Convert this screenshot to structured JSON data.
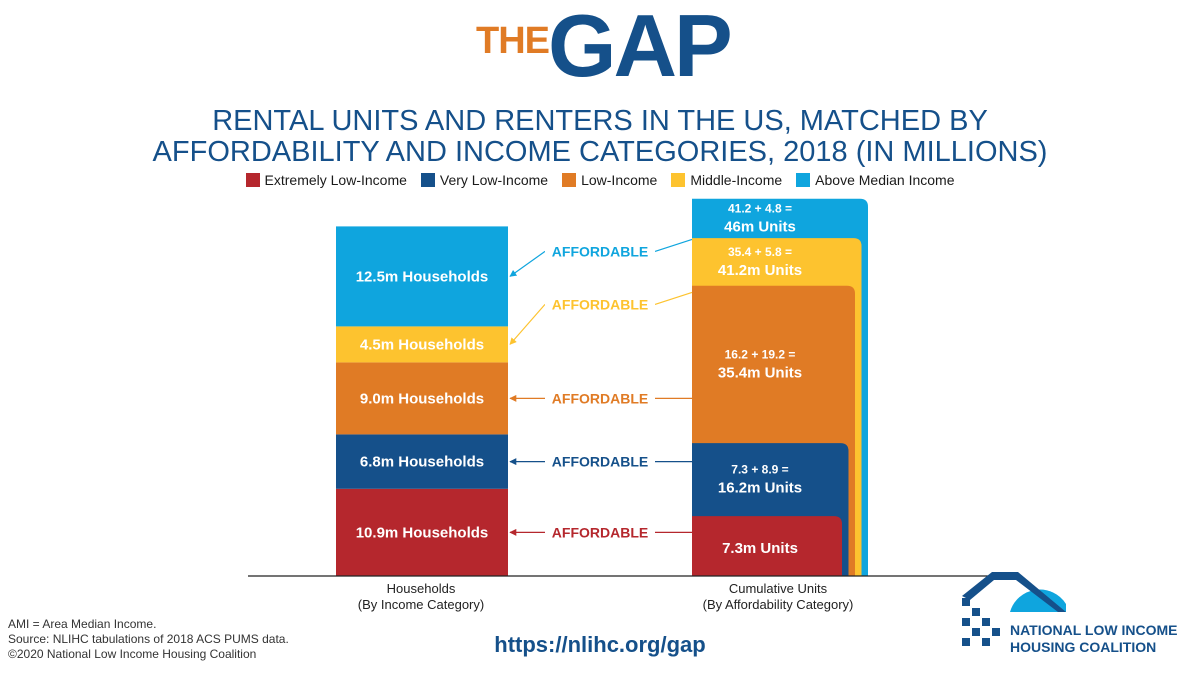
{
  "header": {
    "logo_the": "THE",
    "logo_gap": "GAP",
    "title_line1": "RENTAL UNITS AND RENTERS IN THE US, MATCHED BY",
    "title_line2": "AFFORDABILITY AND INCOME CATEGORIES, 2018 (IN MILLIONS)"
  },
  "legend": [
    {
      "label": "Extremely Low-Income",
      "color": "#B5272D"
    },
    {
      "label": "Very Low-Income",
      "color": "#15508A"
    },
    {
      "label": "Low-Income",
      "color": "#E07B25"
    },
    {
      "label": "Middle-Income",
      "color": "#FDC32F"
    },
    {
      "label": "Above Median Income",
      "color": "#0FA5DE"
    }
  ],
  "chart_data": {
    "type": "bar",
    "title": "RENTAL UNITS AND RENTERS IN THE US, MATCHED BY AFFORDABILITY AND INCOME CATEGORIES, 2018 (IN MILLIONS)",
    "categories": [
      "Households\n(By Income Category)",
      "Cumulative Units\n(By Affordability Category)"
    ],
    "households": {
      "axis_label": [
        "Households",
        "(By Income Category)"
      ],
      "segments": [
        {
          "category": "Extremely Low-Income",
          "value": 10.9,
          "label": "10.9m Households"
        },
        {
          "category": "Very Low-Income",
          "value": 6.8,
          "label": "6.8m Households"
        },
        {
          "category": "Low-Income",
          "value": 9.0,
          "label": "9.0m Households"
        },
        {
          "category": "Middle-Income",
          "value": 4.5,
          "label": "4.5m Households"
        },
        {
          "category": "Above Median Income",
          "value": 12.5,
          "label": "12.5m Households"
        }
      ]
    },
    "units": {
      "axis_label": [
        "Cumulative Units",
        "(By Affordability Category)"
      ],
      "cumulative": [
        {
          "category": "Extremely Low-Income",
          "value": 7.3,
          "formula": "",
          "label": "7.3m Units"
        },
        {
          "category": "Very Low-Income",
          "value": 16.2,
          "formula": "7.3 + 8.9 =",
          "label": "16.2m Units"
        },
        {
          "category": "Low-Income",
          "value": 35.4,
          "formula": "16.2 + 19.2 =",
          "label": "35.4m Units"
        },
        {
          "category": "Middle-Income",
          "value": 41.2,
          "formula": "35.4 + 5.8 =",
          "label": "41.2m Units"
        },
        {
          "category": "Above Median Income",
          "value": 46,
          "formula": "41.2 + 4.8 =",
          "label": "46m Units"
        }
      ]
    },
    "affordable_label": "AFFORDABLE"
  },
  "footer": {
    "note1": "AMI = Area Median Income.",
    "note2": "Source: NLIHC tabulations of 2018 ACS PUMS data.",
    "note3": "©2020 National Low Income Housing Coalition",
    "url": "https://nlihc.org/gap",
    "org_line1": "NATIONAL LOW INCOME",
    "org_line2": "HOUSING COALITION"
  }
}
